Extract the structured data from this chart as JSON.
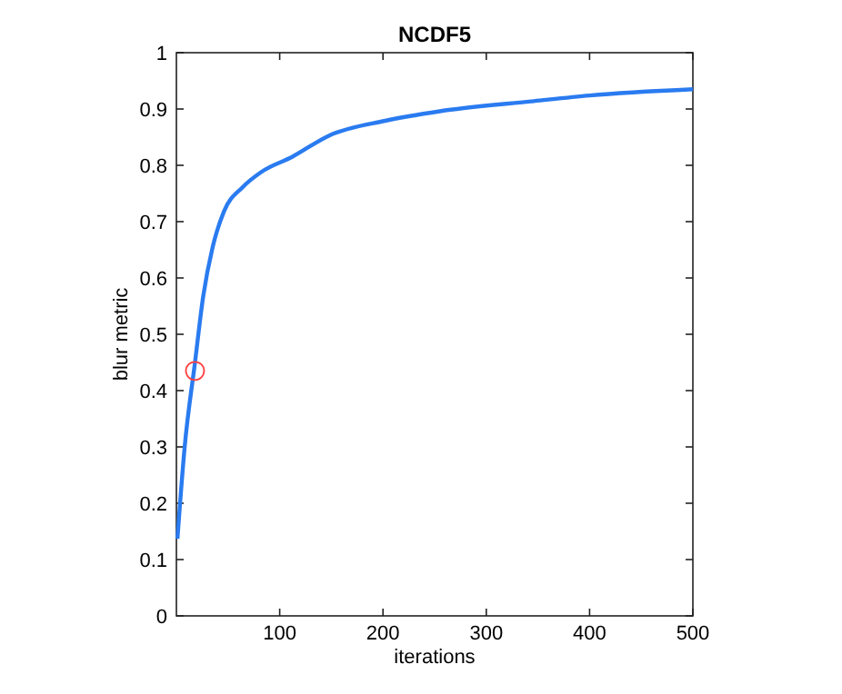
{
  "chart_data": {
    "type": "line",
    "title": "NCDF5",
    "xlabel": "iterations",
    "ylabel": "blur metric",
    "xlim": [
      0,
      500
    ],
    "ylim": [
      0,
      1
    ],
    "xticks": [
      100,
      200,
      300,
      400,
      500
    ],
    "yticks": [
      0,
      0.1,
      0.2,
      0.3,
      0.4,
      0.5,
      0.6,
      0.7,
      0.8,
      0.9,
      1
    ],
    "grid": false,
    "series": [
      {
        "color": "#2a7bf0",
        "marker": "none",
        "x": [
          1,
          8,
          18,
          26,
          35,
          46,
          64,
          82,
          112,
          148,
          202,
          255,
          346,
          400,
          500
        ],
        "values": [
          0.137,
          0.3,
          0.45,
          0.568,
          0.654,
          0.718,
          0.761,
          0.788,
          0.815,
          0.853,
          0.879,
          0.896,
          0.914,
          0.924,
          0.935
        ]
      },
      {
        "type": "scatter",
        "color": "#ff4040",
        "marker": "circle",
        "x": [
          18
        ],
        "values": [
          0.435
        ]
      }
    ]
  }
}
